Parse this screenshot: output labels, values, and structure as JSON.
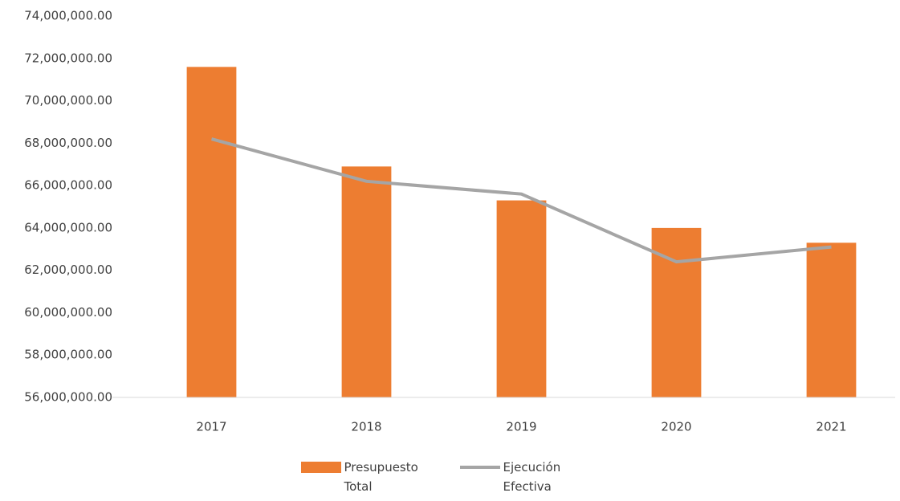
{
  "chart_data": {
    "type": "combo",
    "categories": [
      "2017",
      "2018",
      "2019",
      "2020",
      "2021"
    ],
    "series": [
      {
        "name": "Presupuesto Total",
        "type": "bar",
        "color": "#ed7d31",
        "values": [
          71600000,
          66900000,
          65300000,
          64000000,
          63300000
        ]
      },
      {
        "name": "Ejecución Efectiva",
        "type": "line",
        "color": "#a5a5a5",
        "values": [
          68200000,
          66200000,
          65600000,
          62400000,
          63100000
        ]
      }
    ],
    "ylim": [
      56000000,
      74000000
    ],
    "yticks": [
      {
        "value": 56000000,
        "label": "56,000,000.00"
      },
      {
        "value": 58000000,
        "label": "58,000,000.00"
      },
      {
        "value": 60000000,
        "label": "60,000,000.00"
      },
      {
        "value": 62000000,
        "label": "62,000,000.00"
      },
      {
        "value": 64000000,
        "label": "64,000,000.00"
      },
      {
        "value": 66000000,
        "label": "66,000,000.00"
      },
      {
        "value": 68000000,
        "label": "68,000,000.00"
      },
      {
        "value": 70000000,
        "label": "70,000,000.00"
      },
      {
        "value": 72000000,
        "label": "72,000,000.00"
      },
      {
        "value": 74000000,
        "label": "74,000,000.00"
      }
    ],
    "grid": false,
    "legend": "bottom"
  }
}
